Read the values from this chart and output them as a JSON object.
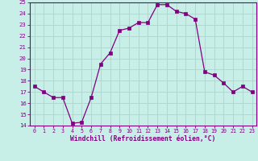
{
  "xlabel": "Windchill (Refroidissement éolien,°C)",
  "x": [
    0,
    1,
    2,
    3,
    4,
    5,
    6,
    7,
    8,
    9,
    10,
    11,
    12,
    13,
    14,
    15,
    16,
    17,
    18,
    19,
    20,
    21,
    22,
    23
  ],
  "y": [
    17.5,
    17.0,
    16.5,
    16.5,
    14.2,
    14.3,
    16.5,
    19.5,
    20.5,
    22.5,
    22.7,
    23.2,
    23.2,
    24.8,
    24.8,
    24.2,
    24.0,
    23.5,
    18.8,
    18.5,
    17.8,
    17.0,
    17.5,
    17.0
  ],
  "line_color": "#800080",
  "marker_color": "#800080",
  "bg_color": "#c8eee8",
  "grid_color": "#b0d8d0",
  "axis_label_color": "#800080",
  "tick_color": "#800080",
  "ylim": [
    14,
    25
  ],
  "xlim": [
    -0.5,
    23.5
  ],
  "yticks": [
    14,
    15,
    16,
    17,
    18,
    19,
    20,
    21,
    22,
    23,
    24,
    25
  ],
  "xticks": [
    0,
    1,
    2,
    3,
    4,
    5,
    6,
    7,
    8,
    9,
    10,
    11,
    12,
    13,
    14,
    15,
    16,
    17,
    18,
    19,
    20,
    21,
    22,
    23
  ]
}
